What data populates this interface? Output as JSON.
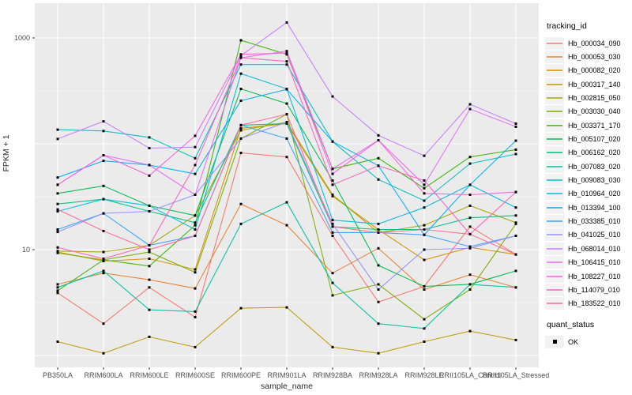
{
  "chart_data": {
    "type": "line",
    "title": "",
    "xlabel": "sample_name",
    "ylabel": "FPKM + 1",
    "y_scale": "log10",
    "y_ticks": [
      {
        "label": "1000",
        "value": 1000
      },
      {
        "label": "10",
        "value": 10
      }
    ],
    "grid": "on",
    "legend_position": "right",
    "categories": [
      "PB350LA",
      "RRIM600LA",
      "RRIM600LE",
      "RRIM600SE",
      "RRIM600PE",
      "RRIM901LA",
      "RRIM928BA",
      "RRIM928LA",
      "RRIM928LE",
      "RRII105LA_Control",
      "RRII105LA_Stressed"
    ],
    "legend_title": "tracking_id",
    "quant_legend_title": "quant_status",
    "quant_legend_items": [
      {
        "label": "OK"
      }
    ],
    "series": [
      {
        "name": "Hb_000034_090",
        "color": "#F8766D",
        "values": [
          3.9,
          2.0,
          4.4,
          2.3,
          82,
          75,
          13.5,
          3.2,
          4.5,
          16.5,
          9.0
        ]
      },
      {
        "name": "Hb_000053_030",
        "color": "#EA8331",
        "values": [
          4.7,
          6.0,
          5.2,
          4.3,
          27,
          17,
          6.0,
          10.3,
          4.2,
          5.8,
          4.4
        ]
      },
      {
        "name": "Hb_000082_020",
        "color": "#D89000",
        "values": [
          9.5,
          7.8,
          8.2,
          6.5,
          140,
          155,
          32,
          15.5,
          8.0,
          10.5,
          9.0
        ]
      },
      {
        "name": "Hb_000317_140",
        "color": "#C09B00",
        "values": [
          1.35,
          1.05,
          1.5,
          1.2,
          2.8,
          2.85,
          1.2,
          1.05,
          1.35,
          1.7,
          1.4
        ]
      },
      {
        "name": "Hb_002815_050",
        "color": "#A3A500",
        "values": [
          9.7,
          9.5,
          11,
          21,
          134,
          160,
          33,
          14.5,
          17,
          26,
          18
        ]
      },
      {
        "name": "Hb_003030_040",
        "color": "#7CAE00",
        "values": [
          9.3,
          8.0,
          9.5,
          6.1,
          112,
          190,
          3.7,
          4.7,
          2.2,
          4.2,
          17.5
        ]
      },
      {
        "name": "Hb_003371_170",
        "color": "#39B600",
        "values": [
          4.1,
          8.0,
          7.0,
          17,
          950,
          700,
          58,
          73,
          38,
          75,
          88
        ]
      },
      {
        "name": "Hb_005107_020",
        "color": "#00BB4E",
        "values": [
          34,
          40,
          26,
          21,
          330,
          240,
          45,
          7.1,
          4.5,
          4.7,
          6.3
        ]
      },
      {
        "name": "Hb_006162_020",
        "color": "#00BF7D",
        "values": [
          27,
          30,
          23,
          18,
          150,
          155,
          16.5,
          15.5,
          15.5,
          20,
          21
        ]
      },
      {
        "name": "Hb_007083_020",
        "color": "#00C1A3",
        "values": [
          4.4,
          6.3,
          2.7,
          2.6,
          17.5,
          28,
          4.85,
          2.0,
          1.8,
          4.7,
          4.4
        ]
      },
      {
        "name": "Hb_009083_030",
        "color": "#00BFC4",
        "values": [
          136,
          132,
          115,
          73,
          560,
          560,
          105,
          46,
          29,
          65,
          80
        ]
      },
      {
        "name": "Hb_010964_020",
        "color": "#00BAE0",
        "values": [
          23,
          30,
          26,
          15.5,
          460,
          330,
          19,
          17.5,
          25,
          41,
          25
        ]
      },
      {
        "name": "Hb_013394_100",
        "color": "#00B0F6",
        "values": [
          48,
          69,
          63,
          52,
          255,
          327,
          105,
          62,
          13.8,
          41,
          107
        ]
      },
      {
        "name": "Hb_033385_010",
        "color": "#35A2FF",
        "values": [
          15.5,
          22,
          11,
          13.5,
          150,
          112,
          14.5,
          14.5,
          13.8,
          10.7,
          13.5
        ]
      },
      {
        "name": "Hb_041025_010",
        "color": "#9590FF",
        "values": [
          14.7,
          22,
          23,
          33,
          112,
          160,
          17.5,
          4.2,
          10,
          10.3,
          13.5
        ]
      },
      {
        "name": "Hb_068014_010",
        "color": "#C77CFF",
        "values": [
          111,
          163,
          91,
          93,
          680,
          1400,
          280,
          120,
          77,
          236,
          155
        ]
      },
      {
        "name": "Hb_106415_010",
        "color": "#E76BF3",
        "values": [
          41,
          78,
          63,
          33,
          650,
          750,
          58,
          108,
          41,
          213,
          145
        ]
      },
      {
        "name": "Hb_108227_010",
        "color": "#FA62DB",
        "values": [
          41,
          78,
          50,
          119,
          700,
          720,
          52,
          108,
          34,
          33,
          35
        ]
      },
      {
        "name": "Hb_114079_010",
        "color": "#FF62BC",
        "values": [
          10.5,
          8.2,
          11,
          63,
          650,
          600,
          41,
          62,
          45,
          14,
          35
        ]
      },
      {
        "name": "Hb_183522_010",
        "color": "#FF6A98",
        "values": [
          24,
          15,
          10,
          13.5,
          150,
          190,
          16.5,
          14.5,
          15.5,
          14,
          9
        ]
      }
    ],
    "colors": {
      "panel_background": "#EBEBEB",
      "gridline": "#FFFFFF",
      "tick_text": "#4D4D4D",
      "point": "#000000"
    }
  }
}
